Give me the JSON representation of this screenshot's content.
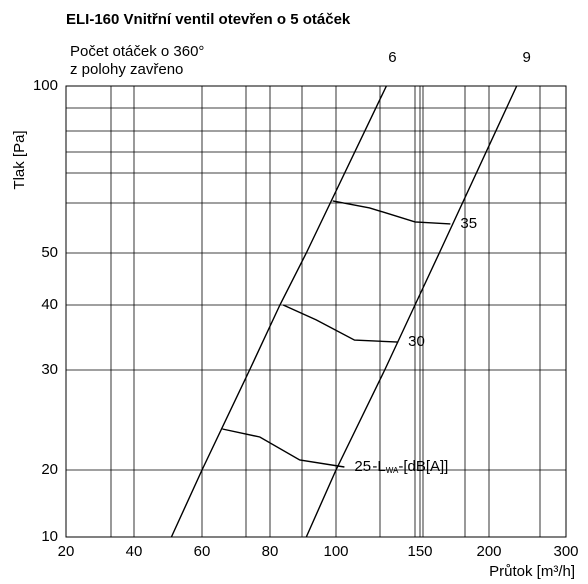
{
  "chart_data": {
    "type": "line",
    "title": "ELI-160 Vnitřní ventil otevřen o 5 otáček",
    "note": [
      "Počet otáček o 360°",
      "z polohy zavřeno"
    ],
    "y_label": "Tlak [Pa]",
    "x_label": "Průtok [m³/h]",
    "xlim": [
      20,
      300
    ],
    "xticks": [
      20,
      40,
      60,
      80,
      100,
      150,
      200,
      300
    ],
    "ylim": [
      10,
      100
    ],
    "yticks": [
      10,
      20,
      30,
      40,
      50,
      100
    ],
    "grid": true,
    "series": [
      {
        "name": "6",
        "color": "#000000",
        "x": [
          51,
          60,
          74,
          83,
          91,
          130
        ],
        "values": [
          10,
          20,
          30,
          40,
          50,
          100
        ]
      },
      {
        "name": "9",
        "color": "#000000",
        "x": [
          91,
          100,
          129,
          147,
          164,
          236
        ],
        "values": [
          10,
          20,
          30,
          40,
          50,
          100
        ]
      },
      {
        "name": "35",
        "color": "#000000",
        "x": [
          99,
          120,
          147,
          172
        ],
        "values": [
          65.6,
          63.5,
          59.3,
          58.7
        ]
      },
      {
        "name": "30",
        "color": "#000000",
        "x": [
          84,
          94,
          111,
          137
        ],
        "values": [
          40,
          37.7,
          34.6,
          34.3
        ]
      },
      {
        "name": "25",
        "color": "#000000",
        "x": [
          66,
          77,
          89,
          105
        ],
        "values": [
          24.1,
          23.3,
          21,
          20.3
        ]
      }
    ],
    "noise_label": [
      "-L",
      "WA",
      "-[dB[A]]"
    ]
  }
}
